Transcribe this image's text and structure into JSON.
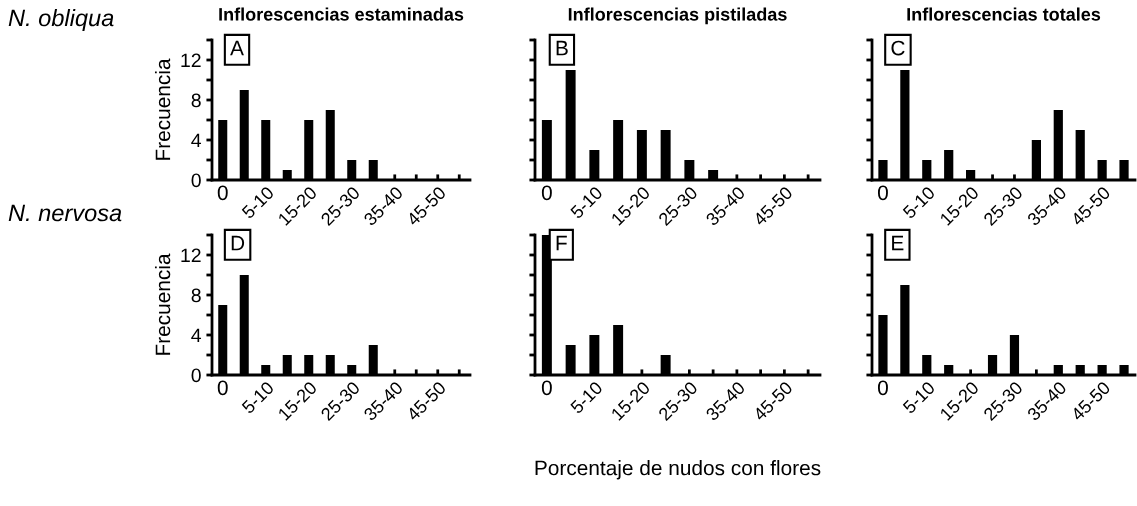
{
  "chart_data": [
    {
      "type": "bar",
      "title": "Inflorescencias estaminadas",
      "ylabel": "Frecuencia",
      "annotations": [
        "A",
        "N. obliqua"
      ],
      "categories": [
        "0",
        null,
        "5-10",
        null,
        "15-20",
        null,
        "25-30",
        null,
        "35-40",
        null,
        "45-50",
        null
      ],
      "values": [
        6,
        9,
        6,
        1,
        6,
        7,
        2,
        2,
        0,
        0,
        0,
        0
      ],
      "color": "#000000",
      "ylim": [
        0,
        14
      ],
      "yticks": [
        0,
        {
          "value": 2,
          "label": null
        },
        4,
        {
          "value": 6,
          "label": null
        },
        8,
        {
          "value": 10,
          "label": null
        },
        12,
        {
          "value": 14,
          "label": null
        }
      ],
      "grid": false
    },
    {
      "type": "bar",
      "title": "Inflorescencias pistiladas",
      "annotations": [
        "B"
      ],
      "categories": [
        "0",
        null,
        "5-10",
        null,
        "15-20",
        null,
        "25-30",
        null,
        "35-40",
        null,
        "45-50",
        null
      ],
      "values": [
        6,
        11,
        3,
        6,
        5,
        5,
        2,
        1,
        0,
        0,
        0,
        0
      ],
      "color": "#000000",
      "ylim": [
        0,
        14
      ],
      "yticks": [
        0,
        {
          "value": 2,
          "label": null
        },
        4,
        {
          "value": 6,
          "label": null
        },
        8,
        {
          "value": 10,
          "label": null
        },
        12,
        {
          "value": 14,
          "label": null
        }
      ],
      "tick_labels": "x",
      "grid": false
    },
    {
      "type": "bar",
      "title": "Inflorescencias totales",
      "annotations": [
        "C"
      ],
      "categories": [
        "0",
        null,
        "5-10",
        null,
        "15-20",
        null,
        "25-30",
        null,
        "35-40",
        null,
        "45-50",
        null
      ],
      "values": [
        2,
        11,
        2,
        3,
        1,
        0,
        0,
        4,
        7,
        5,
        2,
        2
      ],
      "color": "#000000",
      "ylim": [
        0,
        14
      ],
      "yticks": [
        0,
        {
          "value": 2,
          "label": null
        },
        4,
        {
          "value": 6,
          "label": null
        },
        8,
        {
          "value": 10,
          "label": null
        },
        12,
        {
          "value": 14,
          "label": null
        }
      ],
      "tick_labels": "x",
      "grid": false
    },
    {
      "type": "bar",
      "ylabel": "Frecuencia",
      "annotations": [
        "D",
        "N. nervosa"
      ],
      "categories": [
        "0",
        null,
        "5-10",
        null,
        "15-20",
        null,
        "25-30",
        null,
        "35-40",
        null,
        "45-50",
        null
      ],
      "values": [
        7,
        10,
        1,
        2,
        2,
        2,
        1,
        3,
        0,
        0,
        0,
        0
      ],
      "color": "#000000",
      "ylim": [
        0,
        14
      ],
      "yticks": [
        0,
        {
          "value": 2,
          "label": null
        },
        4,
        {
          "value": 6,
          "label": null
        },
        8,
        {
          "value": 10,
          "label": null
        },
        12,
        {
          "value": 14,
          "label": null
        }
      ],
      "grid": false
    },
    {
      "type": "bar",
      "xlabel": "Porcentaje de nudos con flores",
      "annotations": [
        "F"
      ],
      "categories": [
        "0",
        null,
        "5-10",
        null,
        "15-20",
        null,
        "25-30",
        null,
        "35-40",
        null,
        "45-50",
        null
      ],
      "values": [
        14,
        3,
        4,
        5,
        0,
        2,
        0,
        0,
        0,
        0,
        0,
        0
      ],
      "color": "#000000",
      "ylim": [
        0,
        14
      ],
      "yticks": [
        0,
        {
          "value": 2,
          "label": null
        },
        4,
        {
          "value": 6,
          "label": null
        },
        8,
        {
          "value": 10,
          "label": null
        },
        12,
        {
          "value": 14,
          "label": null
        }
      ],
      "tick_labels": "x",
      "grid": false
    },
    {
      "type": "bar",
      "annotations": [
        "E"
      ],
      "categories": [
        "0",
        null,
        "5-10",
        null,
        "15-20",
        null,
        "25-30",
        null,
        "35-40",
        null,
        "45-50",
        null
      ],
      "values": [
        6,
        9,
        2,
        1,
        0,
        2,
        4,
        0,
        1,
        1,
        1,
        1
      ],
      "color": "#000000",
      "ylim": [
        0,
        14
      ],
      "yticks": [
        0,
        {
          "value": 2,
          "label": null
        },
        4,
        {
          "value": 6,
          "label": null
        },
        8,
        {
          "value": 10,
          "label": null
        },
        12,
        {
          "value": 14,
          "label": null
        }
      ],
      "tick_labels": "x",
      "grid": false
    }
  ]
}
